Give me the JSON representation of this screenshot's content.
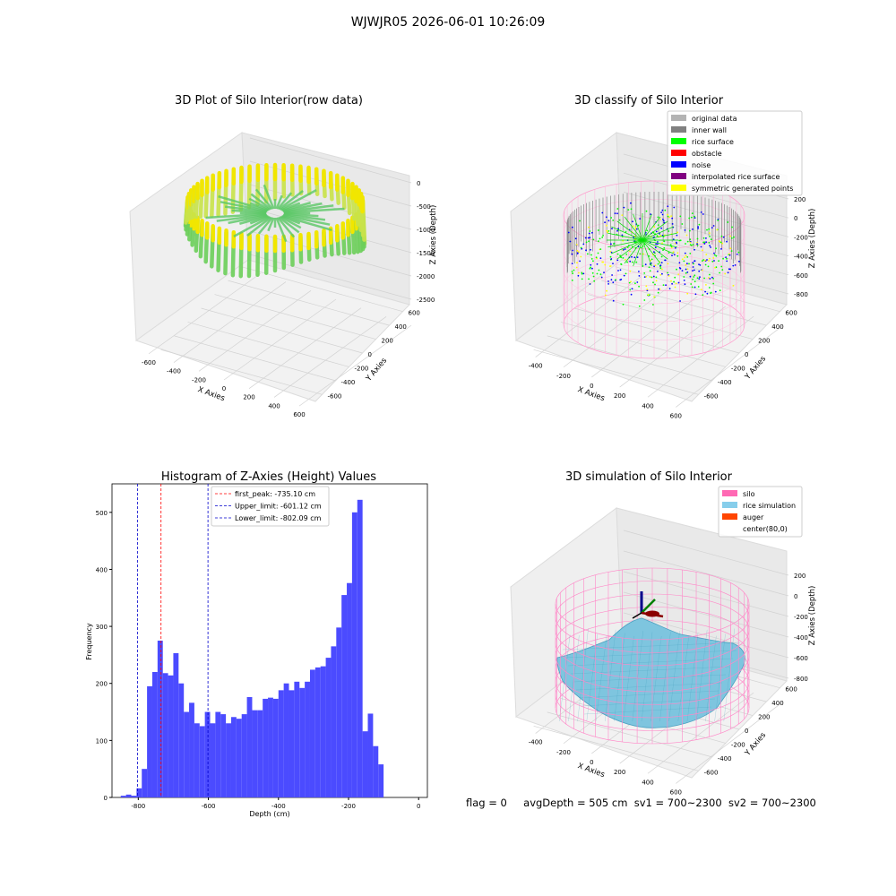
{
  "suptitle": "WJWJR05 2026-06-01 10:26:09",
  "footer": {
    "flag": "flag = 0",
    "avg_depth": "avgDepth = 505 cm",
    "sv1": "sv1 = 700~2300",
    "sv2": "sv2 = 700~2300"
  },
  "panels": {
    "raw": {
      "title": "3D Plot of Silo Interior(row data)",
      "xlabel": "X Axies",
      "ylabel": "Y Axies",
      "zlabel": "Z Axies (Depth)",
      "x_ticks": [
        "-600",
        "-400",
        "-200",
        "0",
        "200",
        "400",
        "600"
      ],
      "y_ticks": [
        "-600",
        "-400",
        "-200",
        "0",
        "200",
        "400",
        "600"
      ],
      "z_ticks": [
        "0",
        "-500",
        "-1000",
        "-1500",
        "-2000",
        "-2500"
      ]
    },
    "classify": {
      "title": "3D classify of Silo Interior",
      "xlabel": "X Axies",
      "ylabel": "Y Axies",
      "zlabel": "Z Axies (Depth)",
      "x_ticks": [
        "-400",
        "-200",
        "0",
        "200",
        "400",
        "600"
      ],
      "y_ticks": [
        "-600",
        "-400",
        "-200",
        "0",
        "200",
        "400",
        "600"
      ],
      "z_ticks": [
        "200",
        "0",
        "-200",
        "-400",
        "-600",
        "-800"
      ],
      "legend": [
        {
          "label": "original data",
          "color": "#b3b3b3"
        },
        {
          "label": "inner wall",
          "color": "#808080"
        },
        {
          "label": "rice surface",
          "color": "#00ff00"
        },
        {
          "label": "obstacle",
          "color": "#ff0000"
        },
        {
          "label": "noise",
          "color": "#0000ff"
        },
        {
          "label": "interpolated rice surface",
          "color": "#800080"
        },
        {
          "label": "symmetric generated points",
          "color": "#ffff00"
        }
      ]
    },
    "simulation": {
      "title": "3D simulation of Silo Interior",
      "xlabel": "X Axies",
      "ylabel": "Y Axies",
      "zlabel": "Z Axies (Depth)",
      "x_ticks": [
        "-400",
        "-200",
        "0",
        "200",
        "400",
        "600"
      ],
      "y_ticks": [
        "-600",
        "-400",
        "-200",
        "0",
        "200",
        "400",
        "600"
      ],
      "z_ticks": [
        "200",
        "0",
        "-200",
        "-400",
        "-600",
        "-800"
      ],
      "legend": [
        {
          "label": "silo",
          "color": "#ff69b4"
        },
        {
          "label": "rice simulation",
          "color": "#87ceeb"
        },
        {
          "label": "auger",
          "color": "#ff4500"
        },
        {
          "label": "center(80,0)",
          "color": ""
        }
      ]
    }
  },
  "chart_data": {
    "type": "bar",
    "title": "Histogram of Z-Axies (Height) Values",
    "xlabel": "Depth (cm)",
    "ylabel": "Frequency",
    "xlim": [
      -875,
      25
    ],
    "ylim": [
      0,
      550
    ],
    "x_ticks": [
      -800,
      -600,
      -400,
      -200,
      0
    ],
    "y_ticks": [
      0,
      100,
      200,
      300,
      400,
      500
    ],
    "bin_width": 15,
    "bar_color": "#4b4bff",
    "bins": [
      {
        "x0": -850,
        "y": 3
      },
      {
        "x0": -835,
        "y": 5
      },
      {
        "x0": -820,
        "y": 3
      },
      {
        "x0": -805,
        "y": 16
      },
      {
        "x0": -790,
        "y": 50
      },
      {
        "x0": -775,
        "y": 195
      },
      {
        "x0": -760,
        "y": 220
      },
      {
        "x0": -745,
        "y": 275
      },
      {
        "x0": -730,
        "y": 218
      },
      {
        "x0": -715,
        "y": 214
      },
      {
        "x0": -700,
        "y": 253
      },
      {
        "x0": -685,
        "y": 200
      },
      {
        "x0": -670,
        "y": 150
      },
      {
        "x0": -655,
        "y": 166
      },
      {
        "x0": -640,
        "y": 130
      },
      {
        "x0": -625,
        "y": 125
      },
      {
        "x0": -610,
        "y": 150
      },
      {
        "x0": -595,
        "y": 130
      },
      {
        "x0": -580,
        "y": 150
      },
      {
        "x0": -565,
        "y": 146
      },
      {
        "x0": -550,
        "y": 130
      },
      {
        "x0": -535,
        "y": 141
      },
      {
        "x0": -520,
        "y": 138
      },
      {
        "x0": -505,
        "y": 146
      },
      {
        "x0": -490,
        "y": 176
      },
      {
        "x0": -475,
        "y": 153
      },
      {
        "x0": -460,
        "y": 153
      },
      {
        "x0": -445,
        "y": 173
      },
      {
        "x0": -430,
        "y": 175
      },
      {
        "x0": -415,
        "y": 173
      },
      {
        "x0": -400,
        "y": 188
      },
      {
        "x0": -385,
        "y": 200
      },
      {
        "x0": -370,
        "y": 188
      },
      {
        "x0": -355,
        "y": 203
      },
      {
        "x0": -340,
        "y": 192
      },
      {
        "x0": -325,
        "y": 203
      },
      {
        "x0": -310,
        "y": 224
      },
      {
        "x0": -295,
        "y": 228
      },
      {
        "x0": -280,
        "y": 230
      },
      {
        "x0": -265,
        "y": 245
      },
      {
        "x0": -250,
        "y": 265
      },
      {
        "x0": -235,
        "y": 298
      },
      {
        "x0": -220,
        "y": 355
      },
      {
        "x0": -205,
        "y": 376
      },
      {
        "x0": -190,
        "y": 500
      },
      {
        "x0": -175,
        "y": 522
      },
      {
        "x0": -160,
        "y": 116
      },
      {
        "x0": -145,
        "y": 147
      },
      {
        "x0": -130,
        "y": 90
      },
      {
        "x0": -115,
        "y": 58
      }
    ],
    "vlines": [
      {
        "label": "first_peak: -735.10 cm",
        "x": -735.1,
        "color": "#ff0000"
      },
      {
        "label": "Upper_limit: -601.12 cm",
        "x": -601.12,
        "color": "#0000cc"
      },
      {
        "label": "Lower_limit: -802.09 cm",
        "x": -802.09,
        "color": "#0000cc"
      }
    ]
  }
}
